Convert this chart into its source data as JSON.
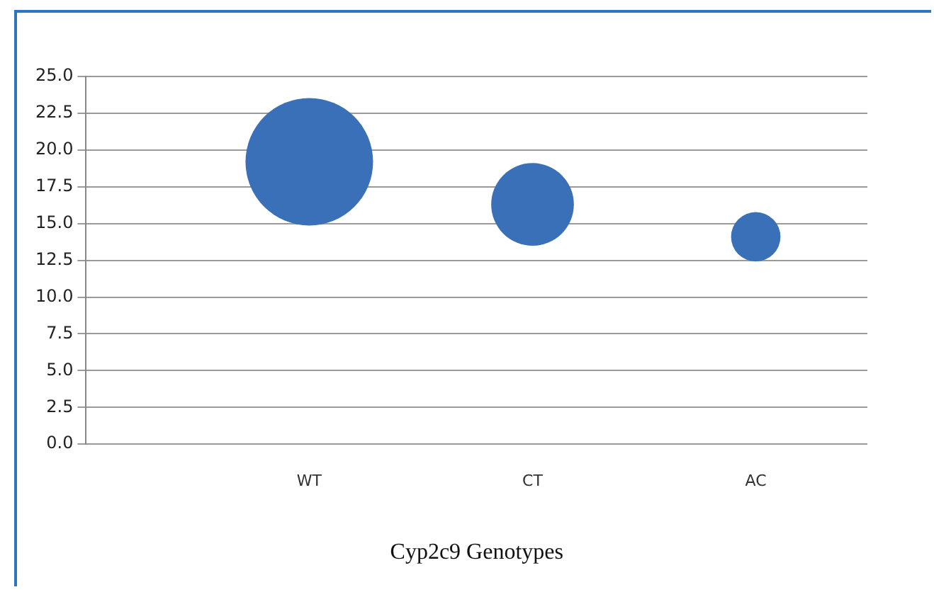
{
  "chart_data": {
    "type": "bubble",
    "xlabel": "Cyp2c9 Genotypes",
    "categories": [
      "WT",
      "CT",
      "AC"
    ],
    "values": [
      19.2,
      16.3,
      14.1
    ],
    "sizes": [
      1,
      0.42,
      0.15
    ],
    "color": "#3a70b8",
    "ylim": [
      0,
      25
    ],
    "yticks": [
      {
        "value": 0,
        "label": "0.0"
      },
      {
        "value": 2.5,
        "label": "2.5"
      },
      {
        "value": 5,
        "label": "5.0"
      },
      {
        "value": 7.5,
        "label": "7.5"
      },
      {
        "value": 10,
        "label": "10.0"
      },
      {
        "value": 12.5,
        "label": "12.5"
      },
      {
        "value": 15,
        "label": "15.0"
      },
      {
        "value": 17.5,
        "label": "17.5"
      },
      {
        "value": 20,
        "label": "20.0"
      },
      {
        "value": 22.5,
        "label": "22.5"
      },
      {
        "value": 25,
        "label": "25.0"
      }
    ],
    "grid": "y",
    "legend": false
  }
}
